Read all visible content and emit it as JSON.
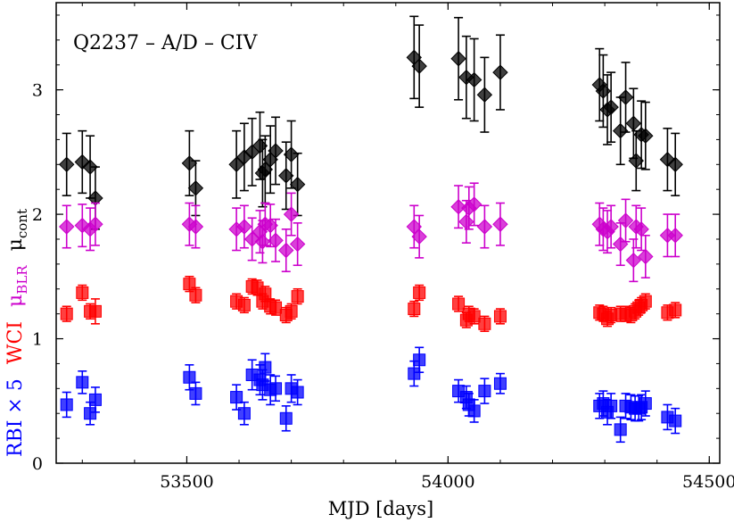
{
  "chart_data": {
    "type": "scatter",
    "title": "Q2237 – A/D – CIV",
    "xlabel": "MJD [days]",
    "xlim": [
      53250,
      54520
    ],
    "ylim": [
      0,
      3.7
    ],
    "xticks": [
      53500,
      54000,
      54500
    ],
    "xtick_labels": [
      "53500",
      "54000",
      "54500"
    ],
    "yticks": [
      0,
      1,
      2,
      3
    ],
    "ytick_labels": [
      "0",
      "1",
      "2",
      "3"
    ],
    "ylabel_parts": [
      {
        "text": "RBI × 5",
        "color": "#0000ff"
      },
      {
        "text": "WCI",
        "color": "#ff0000"
      },
      {
        "text": "μ",
        "sub": "BLR",
        "color": "#cc00cc"
      },
      {
        "text": "μ",
        "sub": "cont",
        "color": "#000000"
      }
    ],
    "series": [
      {
        "name": "μcont",
        "marker": "diamond",
        "color": "#000000",
        "x": [
          53270,
          53300,
          53315,
          53325,
          53505,
          53517,
          53595,
          53610,
          53625,
          53640,
          53645,
          53650,
          53660,
          53670,
          53690,
          53700,
          53712,
          53935,
          53945,
          54020,
          54035,
          54050,
          54070,
          54100,
          54290,
          54297,
          54305,
          54312,
          54330,
          54340,
          54355,
          54360,
          54370,
          54378,
          54420,
          54435
        ],
        "y": [
          2.4,
          2.42,
          2.38,
          2.13,
          2.41,
          2.21,
          2.4,
          2.46,
          2.5,
          2.55,
          2.33,
          2.36,
          2.44,
          2.51,
          2.31,
          2.48,
          2.24,
          3.26,
          3.19,
          3.25,
          3.1,
          3.08,
          2.96,
          3.14,
          3.04,
          2.99,
          2.84,
          2.86,
          2.67,
          2.94,
          2.73,
          2.43,
          2.64,
          2.63,
          2.44,
          2.4
        ],
        "err": [
          0.25,
          0.25,
          0.25,
          0.25,
          0.26,
          0.22,
          0.27,
          0.27,
          0.27,
          0.27,
          0.27,
          0.27,
          0.27,
          0.27,
          0.27,
          0.27,
          0.25,
          0.33,
          0.33,
          0.33,
          0.33,
          0.33,
          0.3,
          0.3,
          0.29,
          0.29,
          0.28,
          0.28,
          0.27,
          0.28,
          0.28,
          0.24,
          0.27,
          0.27,
          0.25,
          0.25
        ]
      },
      {
        "name": "μBLR",
        "marker": "diamond",
        "color": "#cc00cc",
        "x": [
          53270,
          53300,
          53315,
          53325,
          53505,
          53517,
          53595,
          53610,
          53625,
          53640,
          53645,
          53650,
          53660,
          53670,
          53690,
          53700,
          53712,
          53935,
          53945,
          54020,
          54035,
          54040,
          54050,
          54070,
          54100,
          54290,
          54297,
          54305,
          54312,
          54330,
          54340,
          54355,
          54360,
          54370,
          54378,
          54420,
          54435
        ],
        "y": [
          1.9,
          1.91,
          1.88,
          1.92,
          1.92,
          1.9,
          1.88,
          1.9,
          1.8,
          1.86,
          1.78,
          1.92,
          1.91,
          1.79,
          1.71,
          2.0,
          1.76,
          1.9,
          1.82,
          2.06,
          1.94,
          2.05,
          2.08,
          1.9,
          1.92,
          1.92,
          1.88,
          1.86,
          1.9,
          1.76,
          1.95,
          1.63,
          1.9,
          1.88,
          1.66,
          1.83,
          1.83
        ],
        "err": [
          0.17,
          0.17,
          0.17,
          0.17,
          0.17,
          0.17,
          0.17,
          0.17,
          0.17,
          0.17,
          0.17,
          0.17,
          0.17,
          0.17,
          0.17,
          0.17,
          0.17,
          0.17,
          0.17,
          0.17,
          0.17,
          0.17,
          0.17,
          0.17,
          0.17,
          0.17,
          0.17,
          0.17,
          0.17,
          0.17,
          0.17,
          0.17,
          0.17,
          0.17,
          0.17,
          0.17,
          0.17
        ]
      },
      {
        "name": "WCI",
        "marker": "square",
        "color": "#ff0000",
        "x": [
          53270,
          53300,
          53315,
          53325,
          53505,
          53517,
          53595,
          53610,
          53625,
          53635,
          53645,
          53650,
          53660,
          53670,
          53690,
          53700,
          53712,
          53935,
          53945,
          54020,
          54035,
          54040,
          54050,
          54070,
          54100,
          54290,
          54297,
          54305,
          54312,
          54330,
          54340,
          54350,
          54358,
          54365,
          54370,
          54378,
          54420,
          54435
        ],
        "y": [
          1.2,
          1.37,
          1.22,
          1.22,
          1.44,
          1.35,
          1.3,
          1.27,
          1.42,
          1.41,
          1.3,
          1.36,
          1.26,
          1.25,
          1.19,
          1.22,
          1.34,
          1.24,
          1.37,
          1.28,
          1.15,
          1.2,
          1.18,
          1.12,
          1.18,
          1.21,
          1.2,
          1.16,
          1.19,
          1.2,
          1.2,
          1.19,
          1.22,
          1.25,
          1.27,
          1.3,
          1.21,
          1.23
        ],
        "err": [
          0.06,
          0.06,
          0.06,
          0.1,
          0.06,
          0.06,
          0.06,
          0.06,
          0.06,
          0.06,
          0.06,
          0.06,
          0.06,
          0.06,
          0.06,
          0.06,
          0.06,
          0.06,
          0.06,
          0.06,
          0.06,
          0.06,
          0.06,
          0.06,
          0.06,
          0.06,
          0.06,
          0.06,
          0.06,
          0.06,
          0.06,
          0.06,
          0.06,
          0.06,
          0.06,
          0.06,
          0.06,
          0.06
        ]
      },
      {
        "name": "RBI × 5",
        "marker": "square",
        "color": "#0000ff",
        "x": [
          53270,
          53300,
          53315,
          53325,
          53505,
          53517,
          53595,
          53610,
          53625,
          53640,
          53645,
          53650,
          53660,
          53670,
          53690,
          53700,
          53712,
          53935,
          53945,
          54020,
          54035,
          54040,
          54050,
          54070,
          54100,
          54290,
          54297,
          54305,
          54312,
          54330,
          54340,
          54350,
          54358,
          54365,
          54370,
          54378,
          54420,
          54435
        ],
        "y": [
          0.47,
          0.65,
          0.4,
          0.51,
          0.69,
          0.56,
          0.53,
          0.4,
          0.71,
          0.67,
          0.63,
          0.77,
          0.59,
          0.6,
          0.36,
          0.6,
          0.57,
          0.72,
          0.83,
          0.58,
          0.53,
          0.47,
          0.42,
          0.58,
          0.64,
          0.46,
          0.48,
          0.41,
          0.46,
          0.27,
          0.46,
          0.45,
          0.44,
          0.44,
          0.45,
          0.48,
          0.37,
          0.34
        ],
        "err": [
          0.1,
          0.09,
          0.09,
          0.1,
          0.1,
          0.09,
          0.1,
          0.09,
          0.12,
          0.12,
          0.12,
          0.11,
          0.12,
          0.1,
          0.1,
          0.11,
          0.1,
          0.1,
          0.1,
          0.09,
          0.09,
          0.09,
          0.09,
          0.1,
          0.08,
          0.1,
          0.1,
          0.1,
          0.1,
          0.1,
          0.1,
          0.1,
          0.1,
          0.1,
          0.1,
          0.1,
          0.1,
          0.1
        ]
      }
    ]
  }
}
